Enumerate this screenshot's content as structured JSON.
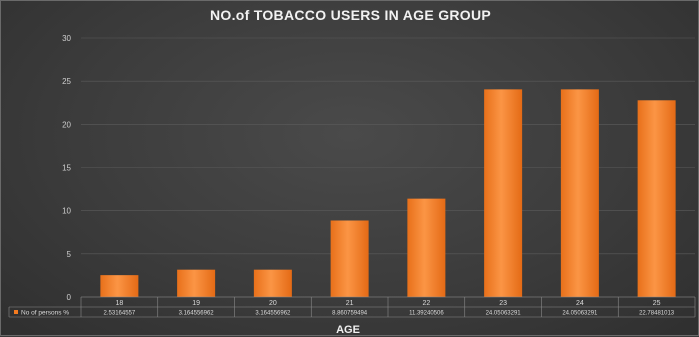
{
  "chart_data": {
    "type": "bar",
    "title": "NO.of TOBACCO USERS IN AGE GROUP",
    "xlabel": "AGE",
    "ylabel": "",
    "categories": [
      "18",
      "19",
      "20",
      "21",
      "22",
      "23",
      "24",
      "25"
    ],
    "series": [
      {
        "name": "No of persons %",
        "values": [
          2.53164557,
          3.164556962,
          3.164556962,
          8.860759494,
          11.39240506,
          24.05063291,
          24.05063291,
          22.78481013
        ],
        "value_labels": [
          "2.53164557",
          "3.164556962",
          "3.164556962",
          "8.860759494",
          "11.39240506",
          "24.05063291",
          "24.05063291",
          "22.78481013"
        ]
      }
    ],
    "yticks": [
      "0",
      "5",
      "10",
      "15",
      "20",
      "25",
      "30"
    ],
    "ylim": [
      0,
      30
    ],
    "grid": true,
    "data_table": true,
    "bar_color": "#f47b20",
    "bar_color_light": "#f99a4a"
  }
}
